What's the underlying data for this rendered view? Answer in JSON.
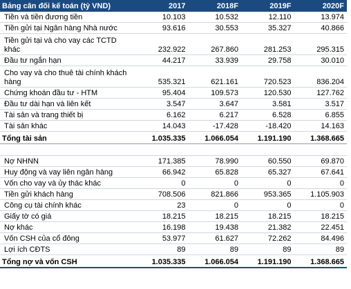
{
  "table": {
    "header": {
      "title": "Bảng cân đối kế toán (tỷ VND)",
      "years": [
        "2017",
        "2018F",
        "2019F",
        "2020F"
      ]
    },
    "assets": [
      {
        "label": "Tiền và tiền đương tiền",
        "values": [
          "10.103",
          "10.532",
          "12.110",
          "13.974"
        ]
      },
      {
        "label": "Tiền gửi tại Ngân hàng Nhà nước",
        "values": [
          "93.616",
          "30.553",
          "35.327",
          "40.866"
        ]
      },
      {
        "label": "Tiền gửi tại và cho vay các TCTD khác",
        "values": [
          "232.922",
          "267.860",
          "281.253",
          "295.315"
        ]
      },
      {
        "label": "Đầu tư ngắn hạn",
        "values": [
          "44.217",
          "33.939",
          "29.758",
          "30.010"
        ]
      },
      {
        "label": "Cho vay và cho thuê tài chính khách hàng",
        "values": [
          "535.321",
          "621.161",
          "720.523",
          "836.204"
        ]
      },
      {
        "label": "Chứng khoán đầu tư - HTM",
        "values": [
          "95.404",
          "109.573",
          "120.530",
          "127.762"
        ]
      },
      {
        "label": "Đầu tư dài hạn và liên kết",
        "values": [
          "3.547",
          "3.647",
          "3.581",
          "3.517"
        ]
      },
      {
        "label": "Tài sản và trang thiết bị",
        "values": [
          "6.162",
          "6.217",
          "6.528",
          "6.855"
        ]
      },
      {
        "label": "Tài sản khác",
        "values": [
          "14.043",
          "-17.428",
          "-18.420",
          "14.163"
        ]
      }
    ],
    "total_assets": {
      "label": "Tổng tài sản",
      "values": [
        "1.035.335",
        "1.066.054",
        "1.191.190",
        "1.368.665"
      ]
    },
    "liabilities": [
      {
        "label": "Nợ NHNN",
        "values": [
          "171.385",
          "78.990",
          "60.550",
          "69.870"
        ]
      },
      {
        "label": "Huy động và vay liên ngân hàng",
        "values": [
          "66.942",
          "65.828",
          "65.327",
          "67.641"
        ]
      },
      {
        "label": "Vốn cho vay và ủy thác khác",
        "values": [
          "0",
          "0",
          "0",
          "0"
        ]
      },
      {
        "label": "Tiền gửi khách hàng",
        "values": [
          "708.506",
          "821.866",
          "953.365",
          "1.105.903"
        ]
      },
      {
        "label": "Công cụ tài chính khác",
        "values": [
          "23",
          "0",
          "0",
          "0"
        ]
      },
      {
        "label": "Giấy tờ có giá",
        "values": [
          "18.215",
          "18.215",
          "18.215",
          "18.215"
        ]
      },
      {
        "label": "Nợ khác",
        "values": [
          "16.198",
          "19.438",
          "21.382",
          "22.451"
        ]
      },
      {
        "label": "Vốn CSH của cổ đông",
        "values": [
          "53.977",
          "61.627",
          "72.262",
          "84.496"
        ]
      },
      {
        "label": "Lợi ích CĐTS",
        "values": [
          "89",
          "89",
          "89",
          "89"
        ]
      }
    ],
    "total_liabilities_equity": {
      "label": "Tổng nợ và vốn CSH",
      "values": [
        "1.035.335",
        "1.066.054",
        "1.191.190",
        "1.368.665"
      ]
    }
  }
}
